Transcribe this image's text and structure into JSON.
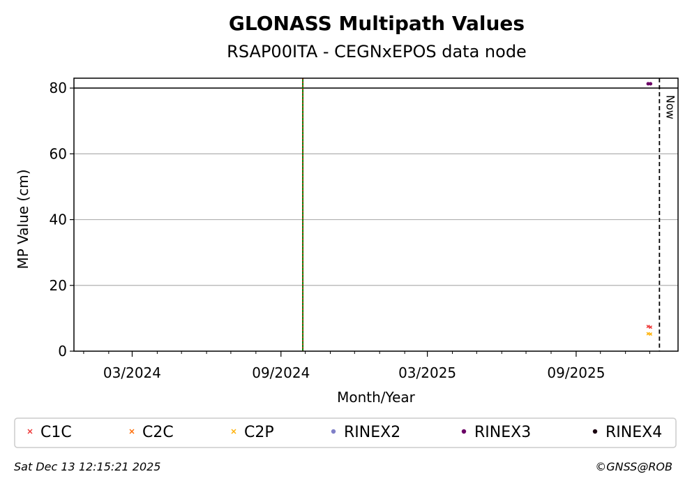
{
  "chart_data": {
    "type": "scatter",
    "title": "GLONASS Multipath Values",
    "subtitle": "RSAP00ITA - CEGNxEPOS data node",
    "xlabel": "Month/Year",
    "ylabel": "MP Value (cm)",
    "x_range": [
      "2023-12-20",
      "2026-01-05"
    ],
    "ylim": [
      0,
      83
    ],
    "x_tick_labels": [
      {
        "date": "2024-03-01",
        "label": "03/2024"
      },
      {
        "date": "2024-09-01",
        "label": "09/2024"
      },
      {
        "date": "2025-03-01",
        "label": "03/2025"
      },
      {
        "date": "2025-09-01",
        "label": "09/2025"
      }
    ],
    "x_minor_ticks": [
      "2024-01-01",
      "2024-02-01",
      "2024-04-01",
      "2024-05-01",
      "2024-06-01",
      "2024-07-01",
      "2024-08-01",
      "2024-10-01",
      "2024-11-01",
      "2024-12-01",
      "2025-01-01",
      "2025-02-01",
      "2025-04-01",
      "2025-05-01",
      "2025-06-01",
      "2025-07-01",
      "2025-08-01",
      "2025-10-01",
      "2025-11-01",
      "2025-12-01"
    ],
    "y_ticks": [
      0,
      20,
      40,
      60,
      80
    ],
    "grid": "y",
    "reference_line": {
      "y": 80,
      "color": "#000000"
    },
    "event_line": {
      "date": "2024-09-28",
      "colors": [
        "#008000",
        "#ff0000"
      ]
    },
    "now_line": {
      "date": "2025-12-13",
      "label": "Now"
    },
    "series": [
      {
        "name": "C1C",
        "marker": "x",
        "color": "#ee3333",
        "points": [
          {
            "x": "2025-11-29",
            "y": 7.5
          },
          {
            "x": "2025-12-02",
            "y": 7.3
          }
        ]
      },
      {
        "name": "C2C",
        "marker": "x",
        "color": "#ff6a00",
        "points": []
      },
      {
        "name": "C2P",
        "marker": "x",
        "color": "#ffb000",
        "points": [
          {
            "x": "2025-11-29",
            "y": 5.3
          },
          {
            "x": "2025-12-02",
            "y": 5.2
          }
        ]
      },
      {
        "name": "RINEX2",
        "marker": "o",
        "color": "#8080c8",
        "points": []
      },
      {
        "name": "RINEX3",
        "marker": "o",
        "color": "#6b0066",
        "points": [
          {
            "x": "2025-11-29",
            "y": 81.3
          },
          {
            "x": "2025-12-02",
            "y": 81.3
          }
        ]
      },
      {
        "name": "RINEX4",
        "marker": "o",
        "color": "#1a0010",
        "points": []
      }
    ]
  },
  "footer": {
    "timestamp": "Sat Dec 13 12:15:21 2025",
    "copyright": "©GNSS@ROB"
  }
}
